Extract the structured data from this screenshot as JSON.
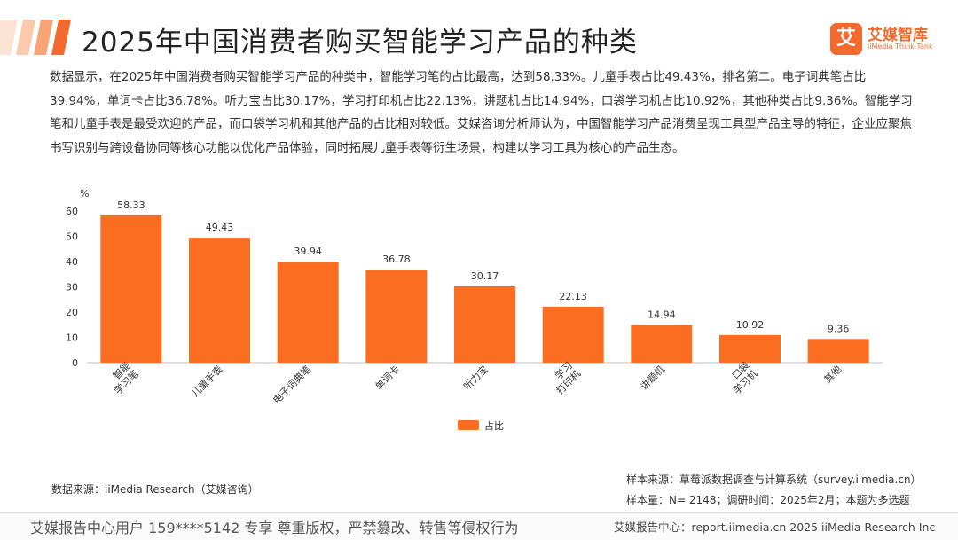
{
  "header": {
    "title": "2025年中国消费者购买智能学习产品的种类",
    "logo_mark": "艾",
    "logo_name": "艾媒智库",
    "logo_en": "iiMedia Think Tank",
    "accent_color": "#f26a2e"
  },
  "description": "数据显示，在2025年中国消费者购买智能学习产品的种类中，智能学习笔的占比最高，达到58.33%。儿童手表占比49.43%，排名第二。电子词典笔占比39.94%，单词卡占比36.78%。听力宝占比30.17%，学习打印机占比22.13%，讲题机占比14.94%，口袋学习机占比10.92%，其他种类占比9.36%。智能学习笔和儿童手表是最受欢迎的产品，而口袋学习机和其他产品的占比相对较低。艾媒咨询分析师认为，中国智能学习产品消费呈现工具型产品主导的特征，企业应聚焦书写识别与跨设备协同等核心功能以优化产品体验，同时拓展儿童手表等衍生场景，构建以学习工具为核心的产品生态。",
  "chart_data": {
    "type": "bar",
    "unit_label": "%",
    "categories": [
      "智能学习笔",
      "儿童手表",
      "电子词典笔",
      "单词卡",
      "听力宝",
      "学习打印机",
      "讲题机",
      "口袋学习机",
      "其他"
    ],
    "category_lines": [
      [
        "智能",
        "学习笔"
      ],
      [
        "儿童手表"
      ],
      [
        "电子词典笔"
      ],
      [
        "单词卡"
      ],
      [
        "听力宝"
      ],
      [
        "学习",
        "打印机"
      ],
      [
        "讲题机"
      ],
      [
        "口袋",
        "学习机"
      ],
      [
        "其他"
      ]
    ],
    "series": [
      {
        "name": "占比",
        "values": [
          58.33,
          49.43,
          39.94,
          36.78,
          30.17,
          22.13,
          14.94,
          10.92,
          9.36
        ],
        "color": "#fb6d20"
      }
    ],
    "ylim": [
      0,
      60
    ],
    "yticks": [
      0,
      10,
      20,
      30,
      40,
      50,
      60
    ],
    "legend_position": "bottom-center",
    "grid": false
  },
  "sources": {
    "left": "数据来源：iiMedia Research（艾媒咨询）",
    "right_line1": "样本来源：草莓派数据调查与计算系统（survey.iimedia.cn）",
    "right_line2": "样本量：N= 2148；调研时间：2025年2月；本题为多选题"
  },
  "footer": {
    "left": "艾媒报告中心用户 159****5142 专享 尊重版权，严禁篡改、转售等侵权行为",
    "right": "艾媒报告中心：report.iimedia.cn   2025 iiMedia Research Inc"
  }
}
